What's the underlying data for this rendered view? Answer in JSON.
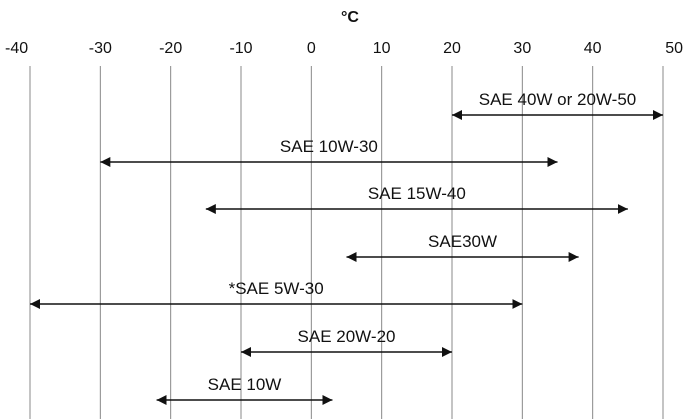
{
  "chart_data": {
    "type": "range",
    "unit": "°C",
    "xlim": [
      -40,
      50
    ],
    "ticks": [
      -40,
      -30,
      -20,
      -10,
      0,
      10,
      20,
      30,
      40,
      50
    ],
    "grid": "vertical",
    "ranges": [
      {
        "label": "SAE 40W or 20W-50",
        "low": 20,
        "high": 50
      },
      {
        "label": "SAE 10W-30",
        "low": -30,
        "high": 35
      },
      {
        "label": "SAE 15W-40",
        "low": -15,
        "high": 45
      },
      {
        "label": "SAE30W",
        "low": 5,
        "high": 38
      },
      {
        "label": "*SAE 5W-30",
        "low": -40,
        "high": 30
      },
      {
        "label": "SAE 20W-20",
        "low": -10,
        "high": 20
      },
      {
        "label": "SAE 10W",
        "low": -22,
        "high": 3
      }
    ],
    "colors": {
      "line": "#111111",
      "grid": "#888888",
      "background": "#ffffff"
    }
  }
}
